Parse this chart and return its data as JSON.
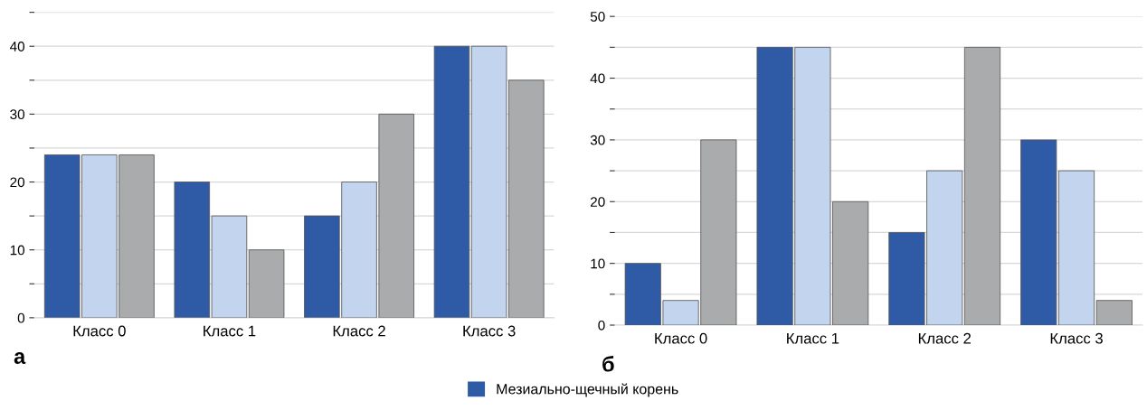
{
  "chart_data": [
    {
      "type": "bar",
      "categories": [
        "Класс 0",
        "Класс 1",
        "Класс 2",
        "Класс 3"
      ],
      "series": [
        {
          "name": "Мезиально-щечный корень",
          "color": "#2f5ba6",
          "values": [
            24,
            20,
            15,
            40
          ]
        },
        {
          "color": "#c3d4ee",
          "values": [
            24,
            15,
            20,
            40
          ]
        },
        {
          "color": "#a9abac",
          "values": [
            24,
            10,
            30,
            35
          ]
        }
      ],
      "ylim": [
        0,
        45
      ],
      "yticks": [
        0,
        {
          "value": 5,
          "label": null
        },
        10,
        {
          "value": 15,
          "label": null
        },
        20,
        {
          "value": 25,
          "label": null
        },
        30,
        {
          "value": 35,
          "label": null
        },
        40,
        {
          "value": 45,
          "label": null
        }
      ],
      "grid": "y",
      "legend": "bottom",
      "annotations": [
        "а"
      ]
    },
    {
      "type": "bar",
      "categories": [
        "Класс 0",
        "Класс 1",
        "Класс 2",
        "Класс 3"
      ],
      "series": [
        {
          "color": "#2f5ba6",
          "values": [
            10,
            45,
            15,
            30
          ]
        },
        {
          "color": "#c3d4ee",
          "values": [
            4,
            45,
            25,
            25
          ]
        },
        {
          "color": "#a9abac",
          "values": [
            30,
            20,
            45,
            4
          ]
        }
      ],
      "ylim": [
        0,
        50
      ],
      "yticks": [
        0,
        {
          "value": 5,
          "label": null
        },
        10,
        {
          "value": 15,
          "label": null
        },
        20,
        {
          "value": 25,
          "label": null
        },
        30,
        {
          "value": 35,
          "label": null
        },
        40,
        {
          "value": 45,
          "label": null
        },
        50
      ],
      "grid": "y",
      "annotations": [
        "б"
      ]
    }
  ]
}
